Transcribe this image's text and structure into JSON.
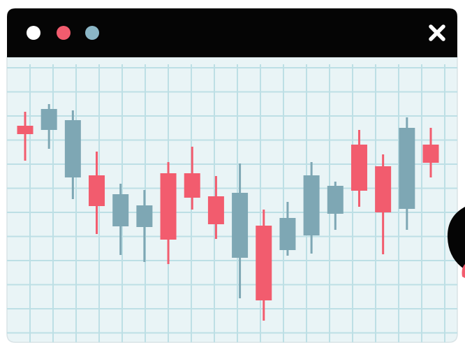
{
  "chart_data": {
    "type": "candlestick",
    "open": [
      290,
      284,
      216,
      219,
      146,
      145,
      222,
      222,
      189,
      101,
      147,
      112,
      133,
      164,
      263,
      232,
      171,
      263
    ],
    "high": [
      310,
      321,
      312,
      253,
      207,
      198,
      238,
      260,
      218,
      236,
      170,
      181,
      238,
      210,
      284,
      249,
      302,
      287
    ],
    "low": [
      240,
      257,
      185,
      135,
      105,
      95,
      92,
      170,
      128,
      43,
      11,
      104,
      107,
      141,
      174,
      106,
      141,
      216
    ],
    "close": [
      278,
      314,
      298,
      175,
      192,
      176,
      127,
      187,
      149,
      194,
      40,
      158,
      219,
      204,
      197,
      166,
      287,
      237
    ],
    "up_color": "#7ea7b4",
    "down_color": "#f25c6e",
    "grid": true
  }
}
